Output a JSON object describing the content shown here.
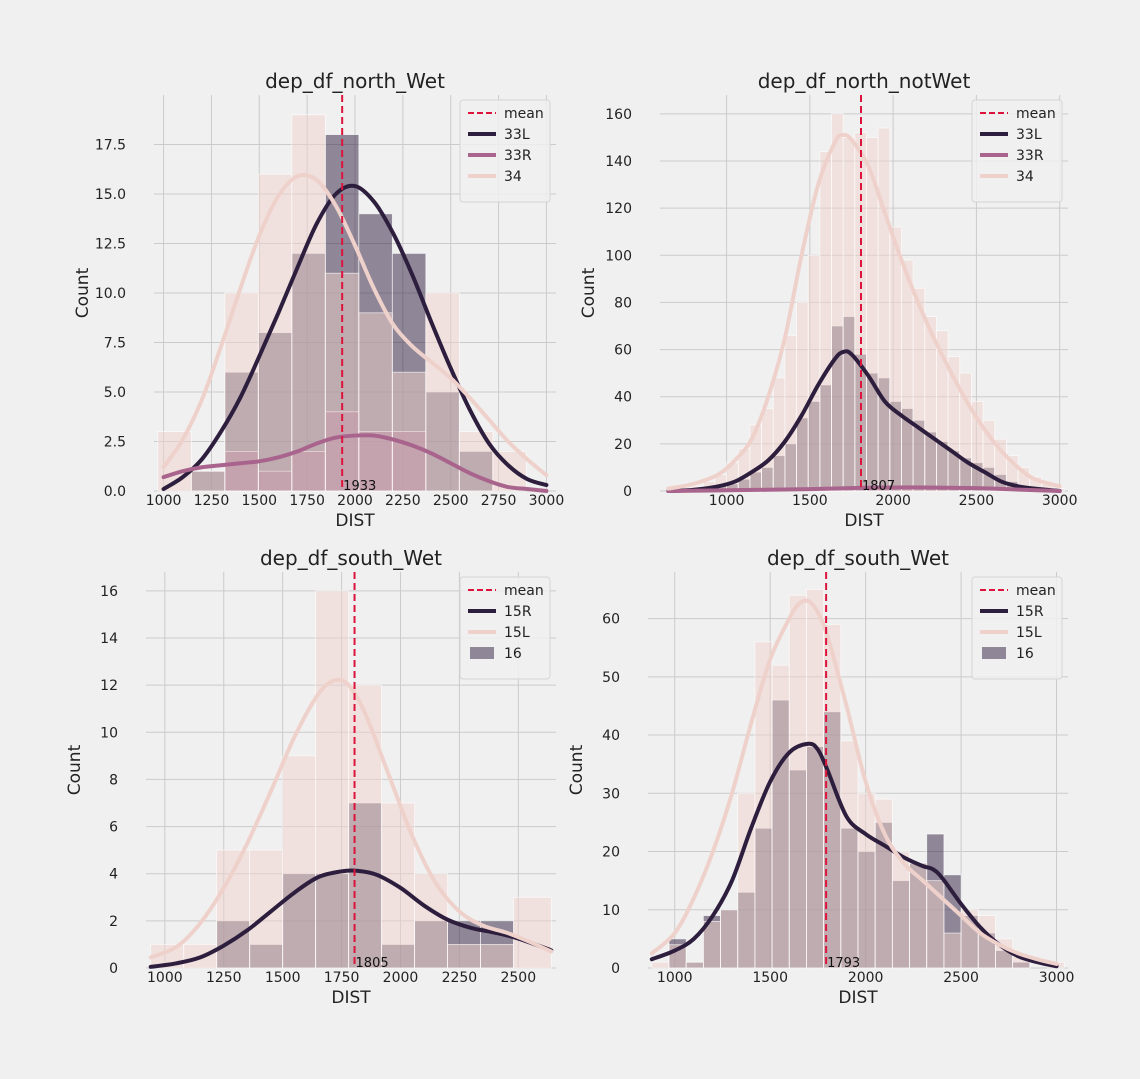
{
  "colors": {
    "background": "#f0f0f0",
    "grid": "#cbcbcb",
    "mean_line": "#dc143c",
    "hue_dark": "#2d1e3e",
    "hue_mid": "#a8648c",
    "hue_light": "#efd1cb"
  },
  "chart_data": [
    {
      "type": "bar",
      "title": "dep_df_north_Wet",
      "xlabel": "DIST",
      "ylabel": "Count",
      "xlim": [
        950,
        3050
      ],
      "ylim": [
        0,
        20
      ],
      "xticks": [
        1000,
        1250,
        1500,
        1750,
        2000,
        2250,
        2500,
        2750,
        3000
      ],
      "yticks": [
        0.0,
        2.5,
        5.0,
        7.5,
        10.0,
        12.5,
        15.0,
        17.5
      ],
      "ytick_labels": [
        "0.0",
        "2.5",
        "5.0",
        "7.5",
        "10.0",
        "12.5",
        "15.0",
        "17.5"
      ],
      "grid": true,
      "legend_position": "top-right",
      "mean": 1933,
      "mean_label": "1933",
      "legend_mean_label": "mean",
      "bin_edges": [
        970,
        1145,
        1320,
        1495,
        1670,
        1845,
        2020,
        2195,
        2370,
        2545,
        2720,
        2895
      ],
      "series": [
        {
          "name": "33L",
          "color_key": "hue_dark",
          "counts": [
            0,
            1,
            6,
            8,
            12,
            18,
            14,
            12,
            5,
            2,
            0
          ],
          "kde_x": [
            1000,
            1100,
            1200,
            1300,
            1400,
            1500,
            1600,
            1700,
            1800,
            1900,
            2000,
            2100,
            2200,
            2300,
            2400,
            2500,
            2600,
            2700,
            2800,
            2900,
            3000
          ],
          "kde_y": [
            0.1,
            0.7,
            1.6,
            3.0,
            4.7,
            6.8,
            9.0,
            11.3,
            13.5,
            15.0,
            15.4,
            14.6,
            13.0,
            10.9,
            8.5,
            6.2,
            4.1,
            2.4,
            1.3,
            0.6,
            0.3
          ]
        },
        {
          "name": "33R",
          "color_key": "hue_mid",
          "counts": [
            0,
            0,
            2,
            1,
            2,
            4,
            3,
            3,
            0,
            0,
            0
          ],
          "kde_x": [
            1000,
            1100,
            1200,
            1300,
            1400,
            1500,
            1600,
            1700,
            1800,
            1900,
            2000,
            2100,
            2200,
            2300,
            2400,
            2500,
            2600,
            2700,
            2800,
            2900,
            3000
          ],
          "kde_y": [
            0.7,
            1.0,
            1.2,
            1.3,
            1.4,
            1.5,
            1.7,
            2.0,
            2.4,
            2.7,
            2.8,
            2.8,
            2.6,
            2.3,
            1.9,
            1.4,
            0.9,
            0.5,
            0.2,
            0.1,
            0.0
          ]
        },
        {
          "name": "34",
          "color_key": "hue_light",
          "counts": [
            3,
            1,
            10,
            16,
            19,
            11,
            9,
            6,
            10,
            3,
            2
          ],
          "kde_x": [
            1000,
            1100,
            1200,
            1300,
            1400,
            1500,
            1600,
            1700,
            1800,
            1900,
            2000,
            2100,
            2200,
            2300,
            2400,
            2500,
            2600,
            2700,
            2800,
            2900,
            3000
          ],
          "kde_y": [
            1.2,
            2.6,
            4.6,
            7.3,
            10.2,
            12.9,
            14.9,
            15.9,
            15.7,
            14.4,
            12.4,
            10.2,
            8.4,
            7.3,
            6.5,
            5.7,
            4.7,
            3.6,
            2.5,
            1.6,
            0.8
          ]
        }
      ]
    },
    {
      "type": "bar",
      "title": "dep_df_north_notWet",
      "xlabel": "DIST",
      "ylabel": "Count",
      "xlim": [
        600,
        3050
      ],
      "ylim": [
        0,
        168
      ],
      "xticks": [
        1000,
        1500,
        2000,
        2500,
        3000
      ],
      "yticks": [
        0,
        20,
        40,
        60,
        80,
        100,
        120,
        140,
        160
      ],
      "ytick_labels": [
        "0",
        "20",
        "40",
        "60",
        "80",
        "100",
        "120",
        "140",
        "160"
      ],
      "grid": true,
      "legend_position": "top-right",
      "mean": 1807,
      "mean_label": "1807",
      "legend_mean_label": "mean",
      "bin_edges": [
        650,
        720,
        790,
        860,
        930,
        1000,
        1070,
        1140,
        1210,
        1280,
        1350,
        1420,
        1490,
        1560,
        1630,
        1700,
        1770,
        1840,
        1910,
        1980,
        2050,
        2120,
        2190,
        2260,
        2330,
        2400,
        2470,
        2540,
        2610,
        2680,
        2750,
        2820,
        2890,
        2960,
        3030
      ],
      "series": [
        {
          "name": "33L",
          "color_key": "hue_dark",
          "counts": [
            0,
            0,
            0,
            0,
            2,
            3,
            5,
            8,
            10,
            15,
            20,
            31,
            38,
            45,
            70,
            74,
            58,
            50,
            48,
            38,
            35,
            30,
            25,
            21,
            17,
            14,
            12,
            10,
            7,
            4,
            2,
            1,
            0,
            0
          ],
          "kde_x": [
            650,
            800,
            950,
            1050,
            1150,
            1250,
            1350,
            1450,
            1550,
            1650,
            1700,
            1750,
            1850,
            1950,
            2050,
            2150,
            2250,
            2350,
            2450,
            2550,
            2650,
            2750,
            2850,
            3000
          ],
          "kde_y": [
            0,
            0.5,
            2,
            4,
            8,
            13,
            21,
            32,
            45,
            56,
            59,
            58,
            49,
            38,
            32,
            27,
            22,
            17,
            12,
            8,
            4,
            2,
            1,
            0
          ]
        },
        {
          "name": "33R",
          "color_key": "hue_mid",
          "counts": [
            0,
            0,
            0,
            0,
            0,
            0,
            0,
            0,
            0,
            0,
            0,
            0,
            0,
            1,
            1,
            1,
            1,
            1,
            1,
            1,
            1,
            1,
            1,
            1,
            1,
            1,
            0,
            0,
            0,
            0,
            0,
            0,
            0,
            0
          ],
          "kde_x": [
            650,
            1000,
            1500,
            1800,
            2000,
            2200,
            2500,
            2800,
            3000
          ],
          "kde_y": [
            0,
            0.3,
            0.8,
            1.3,
            1.5,
            1.5,
            1.2,
            0.5,
            0
          ]
        },
        {
          "name": "34",
          "color_key": "hue_light",
          "counts": [
            0,
            1,
            2,
            4,
            7,
            12,
            18,
            28,
            35,
            48,
            66,
            80,
            100,
            144,
            160,
            150,
            152,
            150,
            154,
            112,
            98,
            86,
            74,
            68,
            57,
            50,
            38,
            30,
            22,
            15,
            10,
            6,
            3,
            1
          ],
          "kde_x": [
            650,
            800,
            950,
            1050,
            1150,
            1250,
            1350,
            1450,
            1550,
            1650,
            1700,
            1750,
            1850,
            1950,
            2050,
            2150,
            2250,
            2350,
            2450,
            2550,
            2650,
            2750,
            2850,
            3000
          ],
          "kde_y": [
            1,
            3,
            7,
            13,
            22,
            40,
            65,
            100,
            130,
            148,
            151,
            149,
            138,
            118,
            98,
            80,
            64,
            50,
            37,
            26,
            17,
            10,
            5,
            2
          ]
        }
      ]
    },
    {
      "type": "bar",
      "title": "dep_df_south_Wet",
      "xlabel": "DIST",
      "ylabel": "Count",
      "xlim": [
        920,
        2660
      ],
      "ylim": [
        0,
        16.8
      ],
      "xticks": [
        1000,
        1250,
        1500,
        1750,
        2000,
        2250,
        2500
      ],
      "yticks": [
        0,
        2,
        4,
        6,
        8,
        10,
        12,
        14,
        16
      ],
      "ytick_labels": [
        "0",
        "2",
        "4",
        "6",
        "8",
        "10",
        "12",
        "14",
        "16"
      ],
      "grid": true,
      "legend_position": "top-right",
      "mean": 1805,
      "mean_label": "1805",
      "legend_mean_label": "mean",
      "bin_edges": [
        940,
        1080,
        1220,
        1360,
        1500,
        1640,
        1780,
        1920,
        2060,
        2200,
        2340,
        2480,
        2640
      ],
      "series": [
        {
          "name": "15R",
          "color_key": "hue_dark",
          "kde_x": [
            940,
            1050,
            1150,
            1250,
            1350,
            1450,
            1550,
            1650,
            1750,
            1820,
            1900,
            2000,
            2100,
            2200,
            2300,
            2400,
            2500,
            2640
          ],
          "kde_y": [
            0.05,
            0.2,
            0.45,
            0.95,
            1.6,
            2.4,
            3.2,
            3.85,
            4.1,
            4.12,
            3.95,
            3.4,
            2.65,
            2.05,
            1.7,
            1.5,
            1.25,
            0.75
          ]
        },
        {
          "name": "15L",
          "color_key": "hue_light",
          "counts": [
            1,
            1,
            5,
            5,
            9,
            16,
            12,
            7,
            4,
            1,
            1,
            3
          ],
          "kde_x": [
            940,
            1050,
            1150,
            1250,
            1350,
            1450,
            1550,
            1650,
            1720,
            1780,
            1850,
            1950,
            2050,
            2150,
            2250,
            2350,
            2450,
            2550,
            2640
          ],
          "kde_y": [
            0.45,
            0.9,
            1.9,
            3.4,
            5.3,
            7.5,
            9.8,
            11.6,
            12.2,
            12.0,
            10.8,
            8.2,
            5.6,
            3.6,
            2.4,
            1.8,
            1.5,
            1.1,
            0.7
          ]
        },
        {
          "name": "16",
          "color_key": "hue_dark",
          "counts": [
            0,
            0,
            2,
            1,
            4,
            4,
            7,
            1,
            2,
            2,
            2,
            0
          ]
        }
      ]
    },
    {
      "type": "bar",
      "title": "dep_df_south_Wet",
      "xlabel": "DIST",
      "ylabel": "Count",
      "xlim": [
        860,
        3060
      ],
      "ylim": [
        0,
        68
      ],
      "xticks": [
        1000,
        1500,
        2000,
        2500,
        3000
      ],
      "yticks": [
        0,
        10,
        20,
        30,
        40,
        50,
        60
      ],
      "ytick_labels": [
        "0",
        "10",
        "20",
        "30",
        "40",
        "50",
        "60"
      ],
      "grid": true,
      "legend_position": "top-right",
      "mean": 1793,
      "mean_label": "1793",
      "legend_mean_label": "mean",
      "bin_edges": [
        880,
        970,
        1060,
        1150,
        1240,
        1330,
        1420,
        1510,
        1600,
        1690,
        1780,
        1870,
        1960,
        2050,
        2140,
        2230,
        2320,
        2410,
        2500,
        2590,
        2680,
        2770,
        2860,
        2950,
        3040
      ],
      "series": [
        {
          "name": "15R",
          "color_key": "hue_dark",
          "kde_x": [
            880,
            1000,
            1100,
            1200,
            1300,
            1400,
            1500,
            1600,
            1700,
            1750,
            1800,
            1900,
            2000,
            2100,
            2200,
            2300,
            2350,
            2400,
            2500,
            2600,
            2700,
            2800,
            2900,
            3000
          ],
          "kde_y": [
            1.5,
            3,
            5,
            9,
            15,
            24,
            32,
            37,
            38.5,
            37.5,
            34,
            26,
            23,
            21,
            19,
            17.5,
            17,
            15.5,
            11,
            7,
            4,
            2,
            1,
            0.3
          ]
        },
        {
          "name": "15L",
          "color_key": "hue_light",
          "counts": [
            1,
            4,
            1,
            8,
            10,
            30,
            56,
            52,
            64,
            65,
            59,
            39,
            30,
            29,
            20,
            18,
            15,
            6,
            10,
            9,
            5,
            2,
            0,
            1
          ],
          "kde_x": [
            880,
            1000,
            1100,
            1200,
            1300,
            1400,
            1500,
            1600,
            1650,
            1700,
            1750,
            1800,
            1900,
            2000,
            2100,
            2200,
            2300,
            2400,
            2500,
            2600,
            2700,
            2800,
            2900,
            3000
          ],
          "kde_y": [
            2.5,
            6,
            12,
            20,
            30,
            42,
            53,
            60,
            62.5,
            63,
            61,
            57,
            45,
            32,
            23,
            18,
            15,
            12,
            9,
            6,
            4,
            2.5,
            1.5,
            0.7
          ]
        },
        {
          "name": "16",
          "color_key": "hue_dark",
          "counts": [
            0,
            5,
            1,
            9,
            10,
            13,
            24,
            46,
            34,
            38,
            44,
            24,
            20,
            25,
            15,
            18,
            23,
            16,
            9,
            6,
            3,
            1,
            0,
            0
          ]
        }
      ]
    }
  ]
}
